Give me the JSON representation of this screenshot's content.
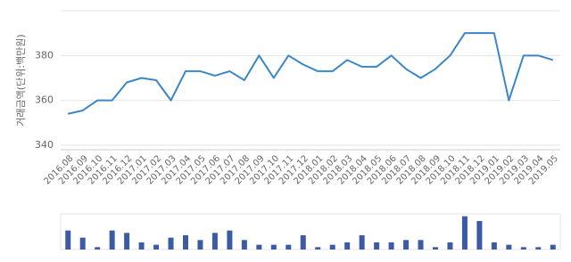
{
  "chart_data": [
    {
      "type": "line",
      "y_label": "거래금액(단위:백만원)",
      "categories": [
        "2016.08",
        "2016.09",
        "2016.10",
        "2016.11",
        "2016.12",
        "2017.01",
        "2017.02",
        "2017.03",
        "2017.04",
        "2017.05",
        "2017.06",
        "2017.07",
        "2017.08",
        "2017.09",
        "2017.10",
        "2017.11",
        "2017.12",
        "2018.01",
        "2018.02",
        "2018.03",
        "2018.04",
        "2018.05",
        "2018.06",
        "2018.07",
        "2018.08",
        "2018.09",
        "2018.10",
        "2018.11",
        "2018.12",
        "2019.01",
        "2019.02",
        "2019.03",
        "2019.04",
        "2019.05"
      ],
      "values": [
        354,
        355.5,
        360,
        360,
        368,
        370,
        369,
        360,
        373,
        373,
        371,
        373,
        369,
        380,
        370,
        380,
        376,
        373,
        373,
        378,
        375,
        375,
        380,
        374,
        370,
        374,
        380,
        390,
        390,
        390,
        360,
        380,
        380,
        378
      ],
      "color": "#3a87c8",
      "ylim": [
        338,
        400
      ],
      "yticks": [
        340,
        360,
        380
      ],
      "grid": true
    },
    {
      "type": "bar",
      "values": [
        8,
        5,
        1,
        8,
        7,
        3,
        2,
        5,
        6,
        4,
        7,
        8,
        4,
        2,
        2,
        2,
        6,
        1,
        2,
        3,
        6,
        3,
        3,
        4,
        4,
        1,
        3,
        14,
        12,
        3,
        2,
        1,
        1,
        2
      ],
      "color": "#3b5ba5",
      "ylim": [
        0,
        15
      ]
    }
  ]
}
